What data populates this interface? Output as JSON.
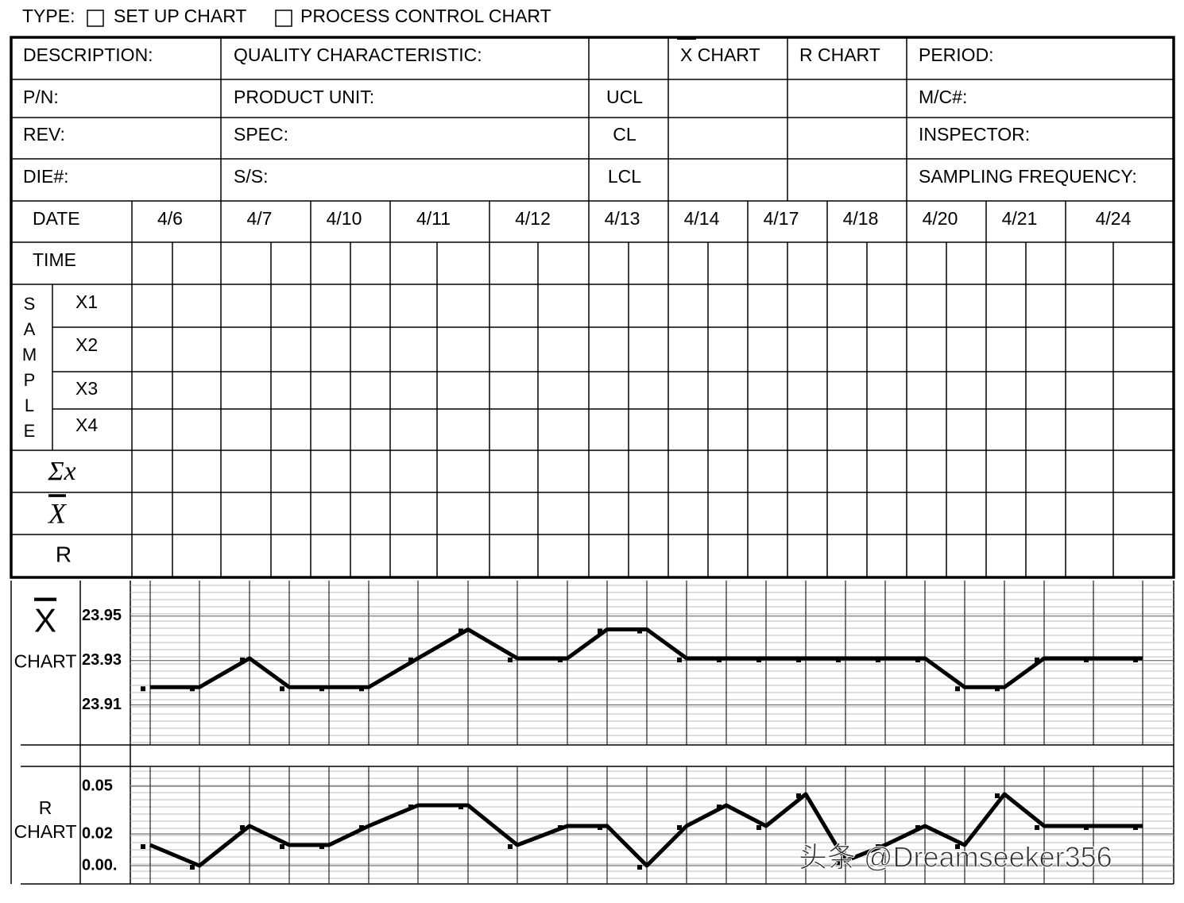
{
  "header": {
    "type_label": "TYPE:",
    "options": [
      "SET UP CHART",
      "PROCESS CONTROL CHART"
    ]
  },
  "info": {
    "left": [
      [
        "DESCRIPTION:",
        "QUALITY CHARACTERISTIC:"
      ],
      [
        "P/N:",
        "PRODUCT UNIT:"
      ],
      [
        "REV:",
        "SPEC:"
      ],
      [
        "DIE#:",
        "S/S:"
      ]
    ],
    "chart_heads": [
      "X CHART",
      "R CHART"
    ],
    "limits": [
      "UCL",
      "CL",
      "LCL"
    ],
    "right": [
      "PERIOD:",
      "M/C#:",
      "INSPECTOR:",
      "SAMPLING FREQUENCY:"
    ]
  },
  "grid": {
    "date_label": "DATE",
    "dates": [
      "4/6",
      "4/7",
      "4/10",
      "4/11",
      "4/12",
      "4/13",
      "4/14",
      "4/17",
      "4/18",
      "4/20",
      "4/21",
      "4/24"
    ],
    "time_label": "TIME",
    "sample_label": "SAMPLE",
    "samples": [
      "X1",
      "X2",
      "X3",
      "X4"
    ],
    "sum_label": "Σx",
    "mean_label": "X",
    "range_label": "R"
  },
  "chart_data": [
    {
      "type": "line",
      "label": "X",
      "sublabel": "CHART",
      "color": "#000000",
      "values": [
        23.918,
        23.918,
        23.931,
        23.918,
        23.918,
        23.918,
        23.931,
        23.944,
        23.931,
        23.931,
        23.944,
        23.944,
        23.931,
        23.931,
        23.931,
        23.931,
        23.931,
        23.931,
        23.931,
        23.918,
        23.918,
        23.931,
        23.931,
        23.931
      ],
      "ylim": [
        23.892,
        23.966
      ],
      "yticks": [
        23.91,
        23.93,
        23.95
      ],
      "grid": true
    },
    {
      "type": "line",
      "label": "R",
      "sublabel": "CHART",
      "color": "#000000",
      "values": [
        0.013,
        0,
        0.025,
        0.013,
        0.013,
        0.025,
        0.038,
        0.038,
        0.013,
        0.025,
        0.025,
        0,
        0.025,
        0.038,
        0.025,
        0.045,
        0.003,
        0.013,
        0.025,
        0.013,
        0.045,
        0.025,
        0.025,
        0.025
      ],
      "ylim": [
        -0.0115,
        0.0625
      ],
      "yticks": [
        {
          "value": 0,
          "label": "0.00."
        },
        0.02,
        0.05
      ],
      "grid": true
    }
  ],
  "watermark": "头条 @Dreamseeker356"
}
